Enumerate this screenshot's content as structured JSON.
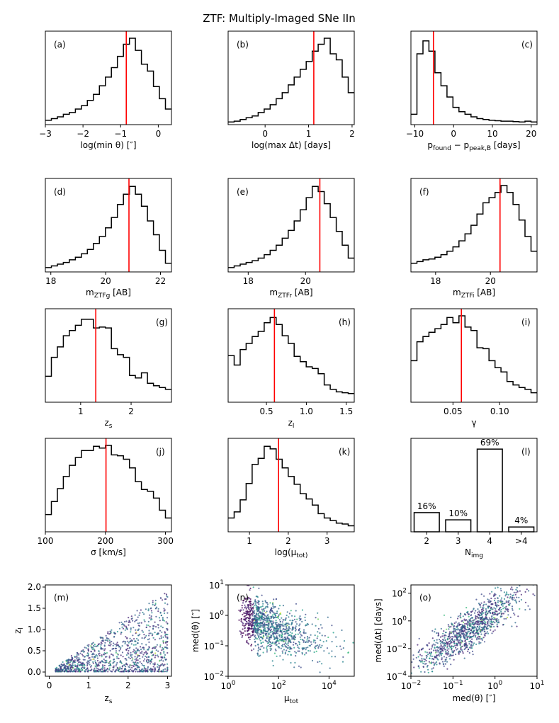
{
  "title": "ZTF: Multiply-Imaged SNe IIn",
  "colors": {
    "hist": "#000000",
    "marker": "#ff0000"
  },
  "chart_data": [
    {
      "type": "histogram",
      "label": "(a)",
      "xlabel": "log(min θ) [″]",
      "xlim": [
        -3,
        0.35
      ],
      "xticks": [
        -3,
        -2,
        -1,
        0
      ],
      "xticklabels": [
        "−3",
        "−2",
        "−1",
        "0"
      ],
      "marker": -0.85,
      "label_pos": "left",
      "values": [
        0.05,
        0.07,
        0.09,
        0.12,
        0.14,
        0.18,
        0.22,
        0.28,
        0.35,
        0.45,
        0.55,
        0.66,
        0.79,
        0.93,
        1.0,
        0.86,
        0.7,
        0.62,
        0.44,
        0.3,
        0.18
      ]
    },
    {
      "type": "histogram",
      "label": "(b)",
      "xlabel": "log(max Δt) [days]",
      "xlim": [
        -0.85,
        2.05
      ],
      "xticks": [
        0,
        1,
        2
      ],
      "xticklabels": [
        "0",
        "1",
        "2"
      ],
      "marker": 1.12,
      "label_pos": "left",
      "values": [
        0.03,
        0.04,
        0.06,
        0.08,
        0.1,
        0.14,
        0.18,
        0.23,
        0.3,
        0.37,
        0.46,
        0.55,
        0.64,
        0.73,
        0.85,
        0.93,
        1.0,
        0.82,
        0.75,
        0.55,
        0.37
      ]
    },
    {
      "type": "histogram",
      "label": "(c)",
      "xlabel": "p_found − p_peak,B [days]",
      "xlim": [
        -11,
        21.5
      ],
      "xticks": [
        -10,
        0,
        10,
        20
      ],
      "xticklabels": [
        "−10",
        "0",
        "10",
        "20"
      ],
      "marker": -5.2,
      "label_pos": "right",
      "values": [
        0.12,
        0.82,
        0.97,
        0.85,
        0.6,
        0.45,
        0.32,
        0.2,
        0.15,
        0.12,
        0.09,
        0.07,
        0.06,
        0.05,
        0.045,
        0.04,
        0.04,
        0.035,
        0.03,
        0.04,
        0.03
      ]
    },
    {
      "type": "histogram",
      "label": "(d)",
      "xlabel": "m_ZTFg [AB]",
      "xlim": [
        17.8,
        22.4
      ],
      "xticks": [
        18,
        20,
        22
      ],
      "xticklabels": [
        "18",
        "20",
        "22"
      ],
      "marker": 20.85,
      "label_pos": "left",
      "values": [
        0.05,
        0.07,
        0.09,
        0.11,
        0.14,
        0.17,
        0.21,
        0.26,
        0.33,
        0.41,
        0.51,
        0.63,
        0.78,
        0.9,
        0.99,
        0.9,
        0.76,
        0.59,
        0.43,
        0.25,
        0.1
      ]
    },
    {
      "type": "histogram",
      "label": "(e)",
      "xlabel": "m_ZTFr [AB]",
      "xlim": [
        17.3,
        21.7
      ],
      "xticks": [
        18,
        20
      ],
      "xticklabels": [
        "18",
        "20"
      ],
      "marker": 20.5,
      "label_pos": "left",
      "values": [
        0.05,
        0.07,
        0.09,
        0.11,
        0.13,
        0.16,
        0.2,
        0.25,
        0.31,
        0.39,
        0.48,
        0.59,
        0.72,
        0.86,
        0.99,
        0.93,
        0.79,
        0.63,
        0.47,
        0.31,
        0.16
      ]
    },
    {
      "type": "histogram",
      "label": "(f)",
      "xlabel": "m_ZTFi [AB]",
      "xlim": [
        17.1,
        21.7
      ],
      "xticks": [
        18,
        20
      ],
      "xticklabels": [
        "18",
        "20"
      ],
      "marker": 20.35,
      "label_pos": "left",
      "values": [
        0.1,
        0.12,
        0.14,
        0.15,
        0.17,
        0.2,
        0.24,
        0.29,
        0.36,
        0.44,
        0.54,
        0.67,
        0.8,
        0.86,
        0.92,
        1.0,
        0.92,
        0.78,
        0.6,
        0.41,
        0.24
      ]
    },
    {
      "type": "histogram",
      "label": "(g)",
      "xlabel": "z_s",
      "xlim": [
        0.3,
        2.8
      ],
      "xticks": [
        1,
        2
      ],
      "xticklabels": [
        "1",
        "2"
      ],
      "marker": 1.3,
      "label_pos": "right",
      "values": [
        0.3,
        0.52,
        0.64,
        0.77,
        0.83,
        0.89,
        0.96,
        0.96,
        0.86,
        0.87,
        0.86,
        0.62,
        0.55,
        0.52,
        0.31,
        0.28,
        0.34,
        0.22,
        0.19,
        0.17,
        0.15
      ]
    },
    {
      "type": "histogram",
      "label": "(h)",
      "xlabel": "z_l",
      "xlim": [
        0.02,
        1.6
      ],
      "xticks": [
        0.5,
        1.0,
        1.5
      ],
      "xticklabels": [
        "0.5",
        "1.0",
        "1.5"
      ],
      "marker": 0.6,
      "label_pos": "right",
      "values": [
        0.54,
        0.43,
        0.61,
        0.68,
        0.76,
        0.82,
        0.92,
        0.98,
        0.9,
        0.77,
        0.68,
        0.53,
        0.47,
        0.41,
        0.39,
        0.33,
        0.2,
        0.15,
        0.12,
        0.11,
        0.1
      ]
    },
    {
      "type": "histogram",
      "label": "(i)",
      "xlabel": "γ",
      "xlim": [
        0.005,
        0.14
      ],
      "xticks": [
        0.05,
        0.1
      ],
      "xticklabels": [
        "0.05",
        "0.10"
      ],
      "marker": 0.059,
      "label_pos": "right",
      "values": [
        0.48,
        0.7,
        0.76,
        0.81,
        0.85,
        0.9,
        0.98,
        0.92,
        1.0,
        0.87,
        0.83,
        0.63,
        0.62,
        0.48,
        0.4,
        0.35,
        0.24,
        0.2,
        0.17,
        0.15,
        0.11
      ]
    },
    {
      "type": "histogram",
      "label": "(j)",
      "xlabel": "σ [km/s]",
      "xlim": [
        100,
        310
      ],
      "xticks": [
        100,
        200,
        300
      ],
      "xticklabels": [
        "100",
        "200",
        "300"
      ],
      "marker": 201,
      "label_pos": "right",
      "values": [
        0.2,
        0.35,
        0.5,
        0.64,
        0.77,
        0.86,
        0.94,
        0.94,
        0.99,
        0.97,
        1.0,
        0.89,
        0.88,
        0.84,
        0.74,
        0.58,
        0.49,
        0.47,
        0.39,
        0.25,
        0.16
      ]
    },
    {
      "type": "histogram",
      "label": "(k)",
      "xlabel": "log(μ_tot)",
      "xlim": [
        0.45,
        3.7
      ],
      "xticks": [
        1,
        2,
        3
      ],
      "xticklabels": [
        "1",
        "2",
        "3"
      ],
      "marker": 1.75,
      "label_pos": "right",
      "values": [
        0.16,
        0.23,
        0.37,
        0.56,
        0.78,
        0.85,
        0.99,
        0.96,
        0.84,
        0.74,
        0.64,
        0.55,
        0.44,
        0.38,
        0.31,
        0.21,
        0.16,
        0.13,
        0.1,
        0.09,
        0.07
      ]
    },
    {
      "type": "bar",
      "label": "(l)",
      "xlabel": "N_img",
      "categories": [
        "2",
        "3",
        "4",
        ">4"
      ],
      "values": [
        16,
        10,
        69,
        4
      ],
      "data_labels": [
        "16%",
        "10%",
        "69%",
        "4%"
      ],
      "ylim": [
        0,
        78
      ],
      "label_pos": "right"
    }
  ],
  "scatter_panels": [
    {
      "type": "scatter",
      "label": "(m)",
      "xlabel": "z_s",
      "ylabel": "z_l",
      "xlim": [
        -0.1,
        3.1
      ],
      "ylim": [
        -0.1,
        2.05
      ],
      "xscale": "linear",
      "yscale": "linear",
      "xticks": [
        0,
        1,
        2,
        3
      ],
      "xticklabels": [
        "0",
        "1",
        "2",
        "3"
      ],
      "yticks": [
        0,
        0.5,
        1.0,
        1.5,
        2.0
      ],
      "yticklabels": [
        "0.0",
        "0.5",
        "1.0",
        "1.5",
        "2.0"
      ],
      "trend": {
        "relation": "z_l < z_s, dense near z_l 0.1–0.5"
      }
    },
    {
      "type": "scatter",
      "label": "(n)",
      "xlabel": "μ_tot",
      "ylabel": "med(θ) [″]",
      "xlim_log10": [
        0,
        5
      ],
      "ylim_log10": [
        -2,
        1
      ],
      "xscale": "log",
      "yscale": "log",
      "xticks": [
        0,
        2,
        4
      ],
      "xticklabels": [
        "10^0",
        "10^2",
        "10^4"
      ],
      "yticks": [
        -2,
        -1,
        0,
        1
      ],
      "yticklabels": [
        "10^−2",
        "10^−1",
        "10^0",
        "10^1"
      ],
      "trend": {
        "relation": "med(θ) decreases with μ_tot"
      }
    },
    {
      "type": "scatter",
      "label": "(o)",
      "xlabel": "med(θ) [″]",
      "ylabel": "med(Δt) [days]",
      "xlim_log10": [
        -2,
        1
      ],
      "ylim_log10": [
        -4,
        2.6
      ],
      "xscale": "log",
      "yscale": "log",
      "xticks": [
        -2,
        -1,
        0,
        1
      ],
      "xticklabels": [
        "10^−2",
        "10^−1",
        "10^0",
        "10^1"
      ],
      "yticks": [
        -4,
        -2,
        0,
        2
      ],
      "yticklabels": [
        "10^−4",
        "10^−2",
        "10^0",
        "10^2"
      ],
      "trend": {
        "relation": "med(Δt) increases roughly as med(θ)^2"
      }
    }
  ]
}
